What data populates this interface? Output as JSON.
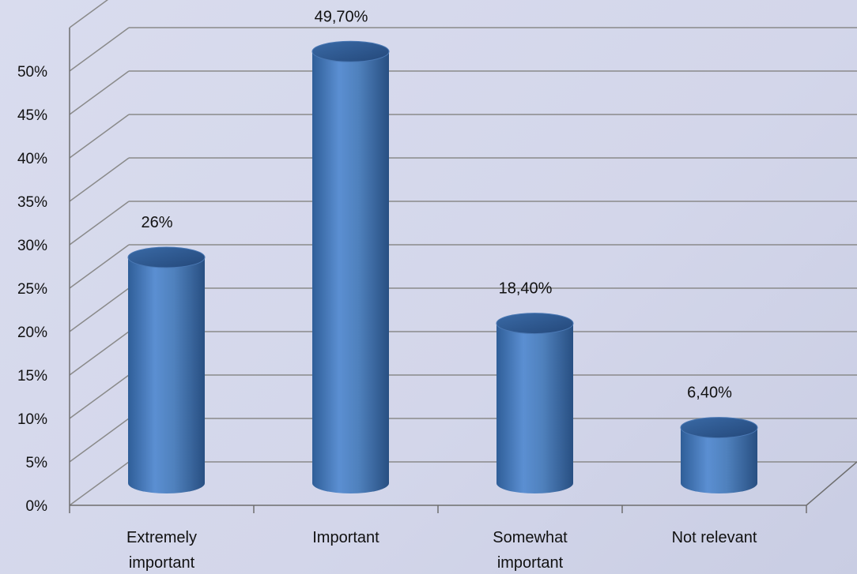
{
  "chart_data": {
    "type": "bar",
    "style": "3d-cylinder",
    "categories": [
      "Extremely\nimportant",
      "Important",
      "Somewhat\nimportant",
      "Not relevant"
    ],
    "values": [
      26,
      49.7,
      18.4,
      6.4
    ],
    "data_labels": [
      "26%",
      "49,70%",
      "18,40%",
      "6,40%"
    ],
    "y_tick_labels": [
      "0%",
      "5%",
      "10%",
      "15%",
      "20%",
      "25%",
      "30%",
      "35%",
      "40%",
      "45%",
      "50%"
    ],
    "ylim": [
      0,
      55
    ],
    "title": "",
    "xlabel": "",
    "ylabel": "",
    "grid": true,
    "legend": "none"
  },
  "colors": {
    "bar": "#4f81bd",
    "bar_dark": "#2e5a8f",
    "bar_light": "#6f9bd6",
    "gridline": "#8a8a8a",
    "axis_line": "#6e6e6e"
  }
}
